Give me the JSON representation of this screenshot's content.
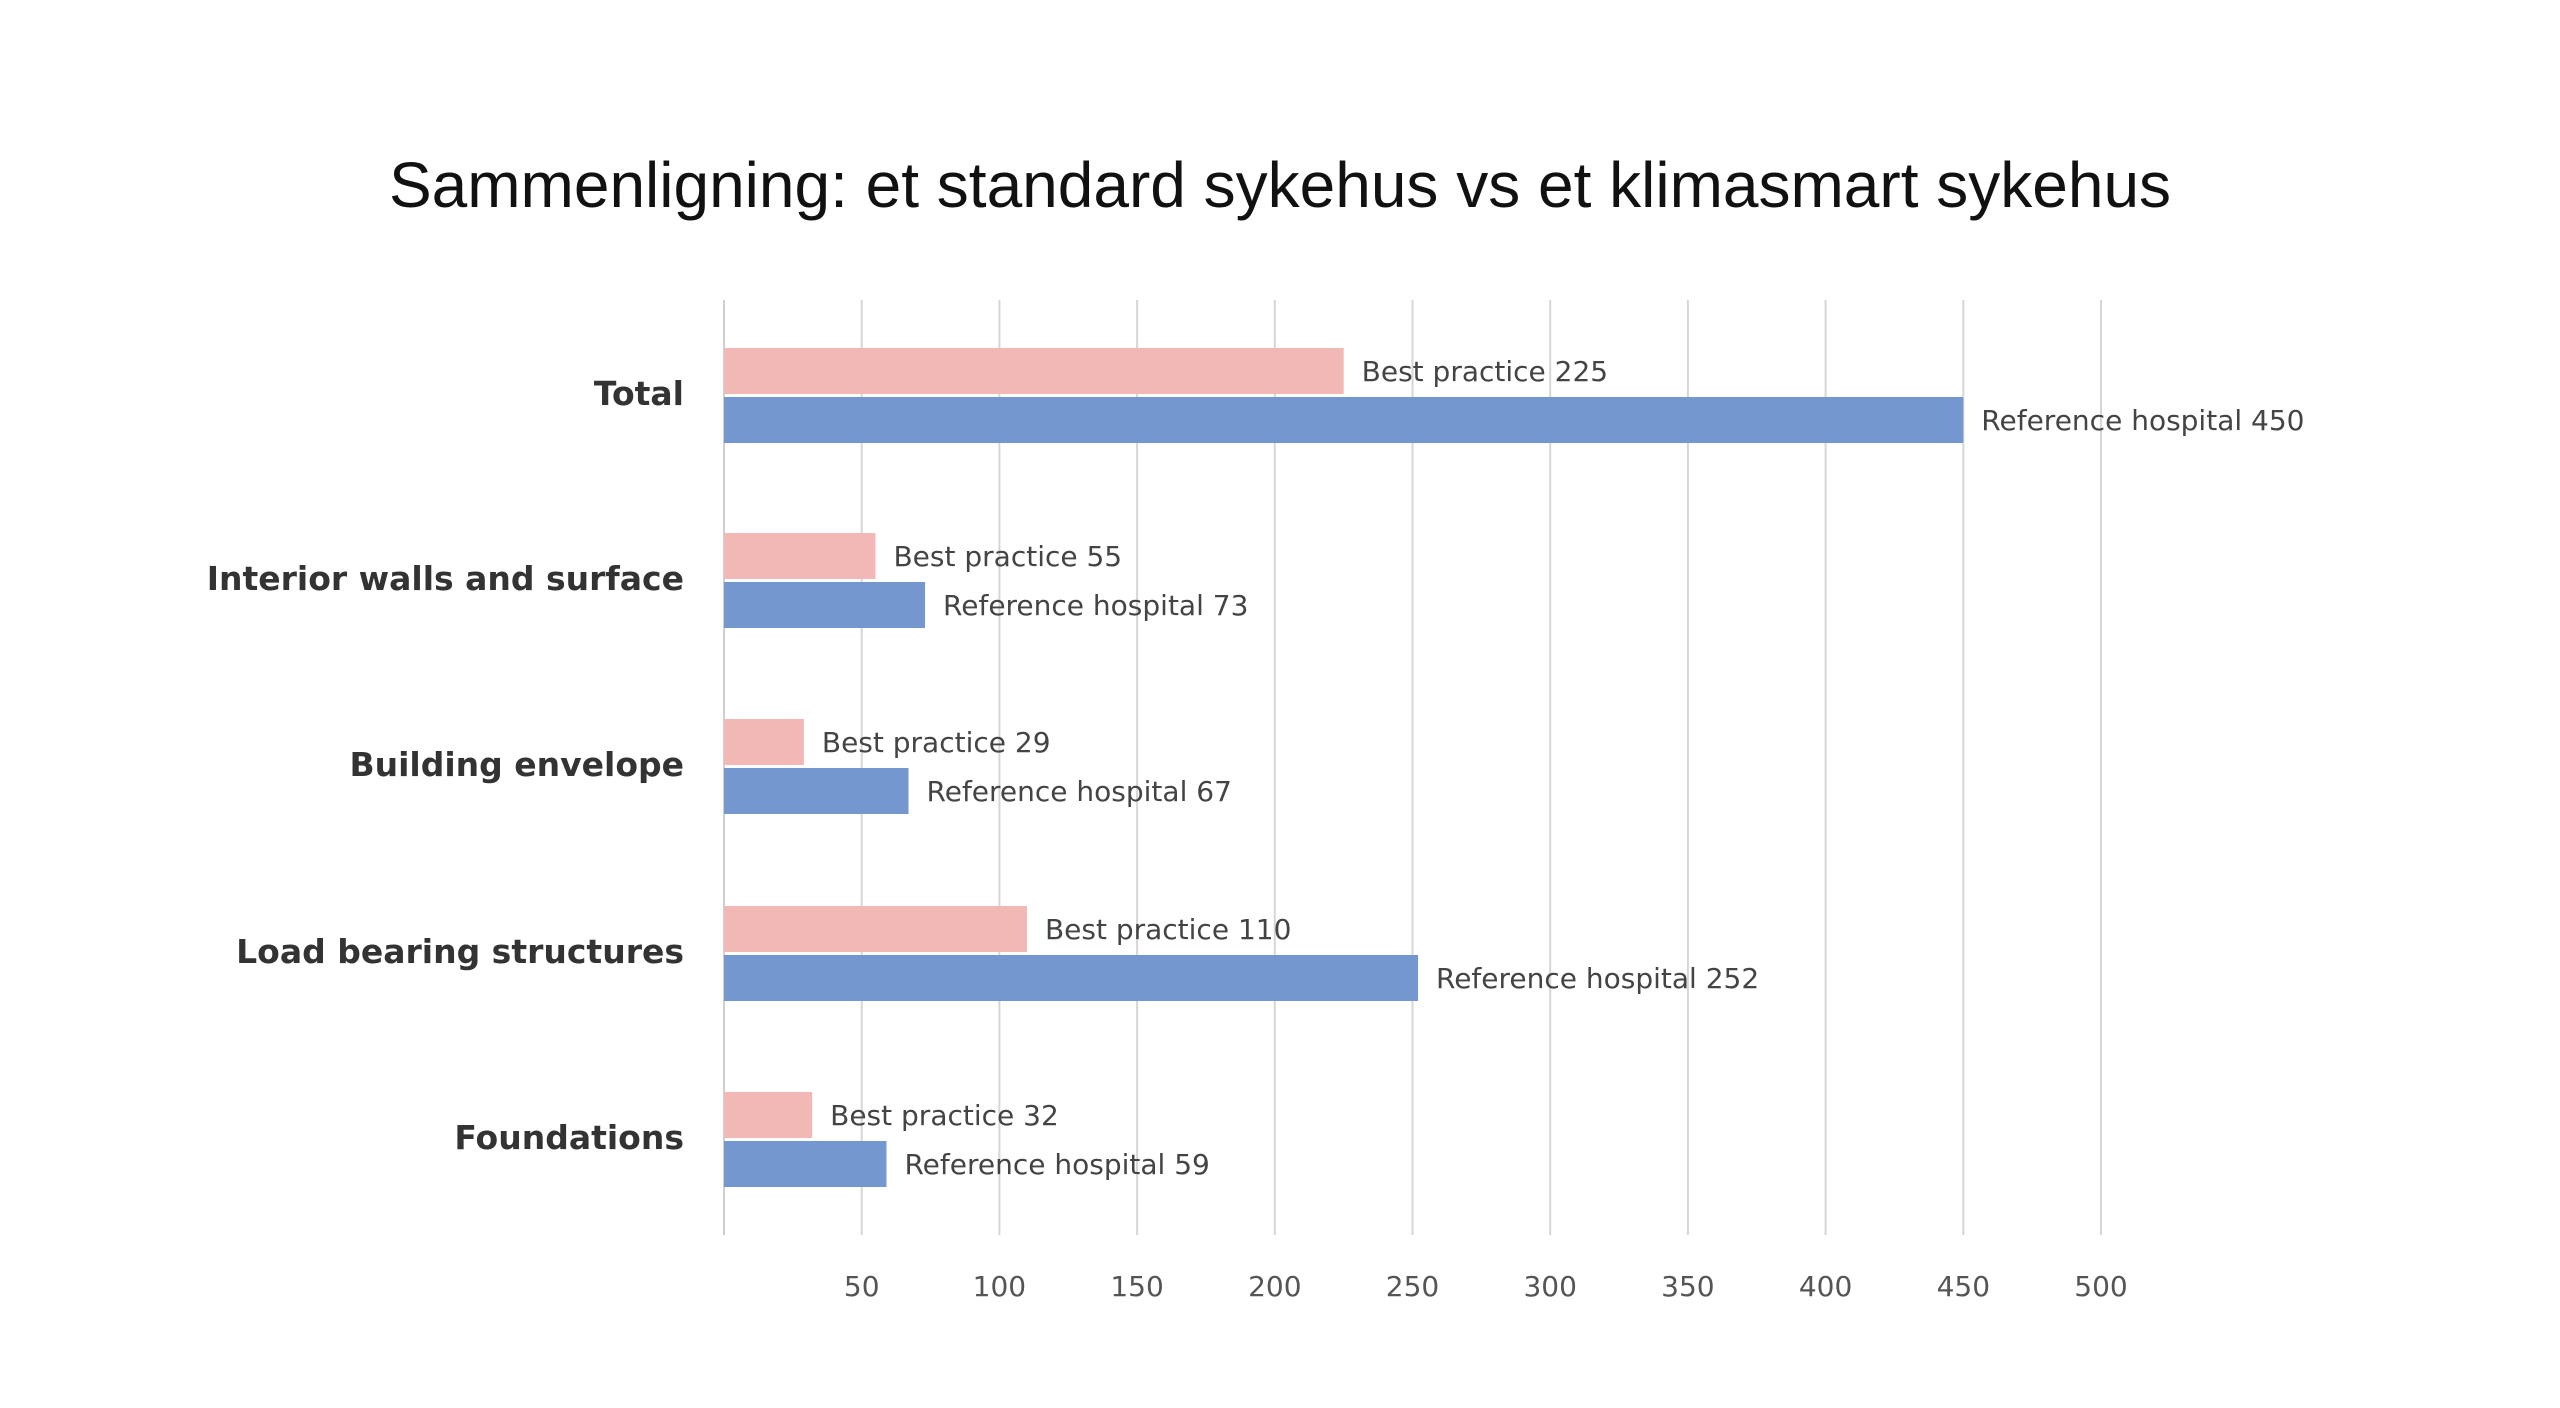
{
  "title": "Sammenligning: et standard sykehus vs et klimasmart sykehus",
  "chart_data": {
    "type": "bar",
    "orientation": "horizontal",
    "categories": [
      "Total",
      "Interior walls and surface",
      "Building envelope",
      "Load bearing structures",
      "Foundations"
    ],
    "series": [
      {
        "name": "Best practice",
        "color": "#f2b8b5",
        "values": [
          225,
          55,
          29,
          110,
          32
        ]
      },
      {
        "name": "Reference hospital",
        "color": "#7597cf",
        "values": [
          450,
          73,
          67,
          252,
          59
        ]
      }
    ],
    "xticks": [
      50,
      100,
      150,
      200,
      250,
      300,
      350,
      400,
      450,
      500
    ],
    "xlim": [
      0,
      500
    ],
    "grid": true,
    "legend": "none"
  }
}
